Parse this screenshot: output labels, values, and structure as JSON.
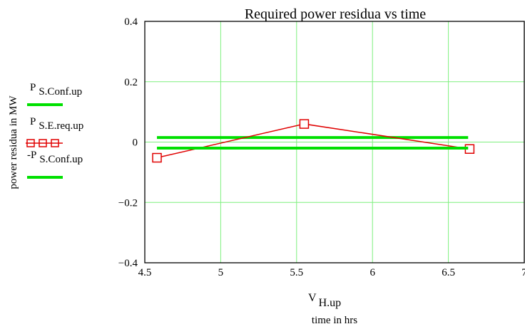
{
  "chart_data": {
    "type": "line",
    "title": "Required power residua vs time",
    "xlabel_main": "V",
    "xlabel_sub": "H.up",
    "xlabel_caption": "time in hrs",
    "ylabel": "power residua in MW",
    "xlim": [
      4.5,
      7
    ],
    "ylim": [
      -0.4,
      0.4
    ],
    "xticks": [
      {
        "v": 4.5,
        "label": "4.5"
      },
      {
        "v": 5,
        "label": "5"
      },
      {
        "v": 5.5,
        "label": "5.5"
      },
      {
        "v": 6,
        "label": "6"
      },
      {
        "v": 6.5,
        "label": "6.5"
      },
      {
        "v": 7,
        "label": "7"
      }
    ],
    "yticks": [
      {
        "v": 0.4,
        "label": "0.4"
      },
      {
        "v": 0.2,
        "label": "0.2"
      },
      {
        "v": 0,
        "label": "0"
      },
      {
        "v": -0.2,
        "label": "−0.2"
      },
      {
        "v": -0.4,
        "label": "−0.4"
      }
    ],
    "grid": true,
    "legend_position": "left",
    "series": [
      {
        "name_main": "P",
        "name_sub": "S.Conf.up",
        "color": "#00e000",
        "style": "thick-line",
        "x": [
          4.58,
          6.63
        ],
        "y": [
          0.015,
          0.015
        ]
      },
      {
        "name_main": "P",
        "name_sub": "S.E.req.up",
        "color": "#e00000",
        "style": "line-square-markers",
        "x": [
          4.58,
          5.55,
          6.64
        ],
        "y": [
          -0.052,
          0.06,
          -0.023
        ]
      },
      {
        "name_main": "-P",
        "name_sub": "S.Conf.up",
        "color": "#00e000",
        "style": "thick-line",
        "x": [
          4.58,
          6.63
        ],
        "y": [
          -0.02,
          -0.02
        ]
      }
    ]
  }
}
